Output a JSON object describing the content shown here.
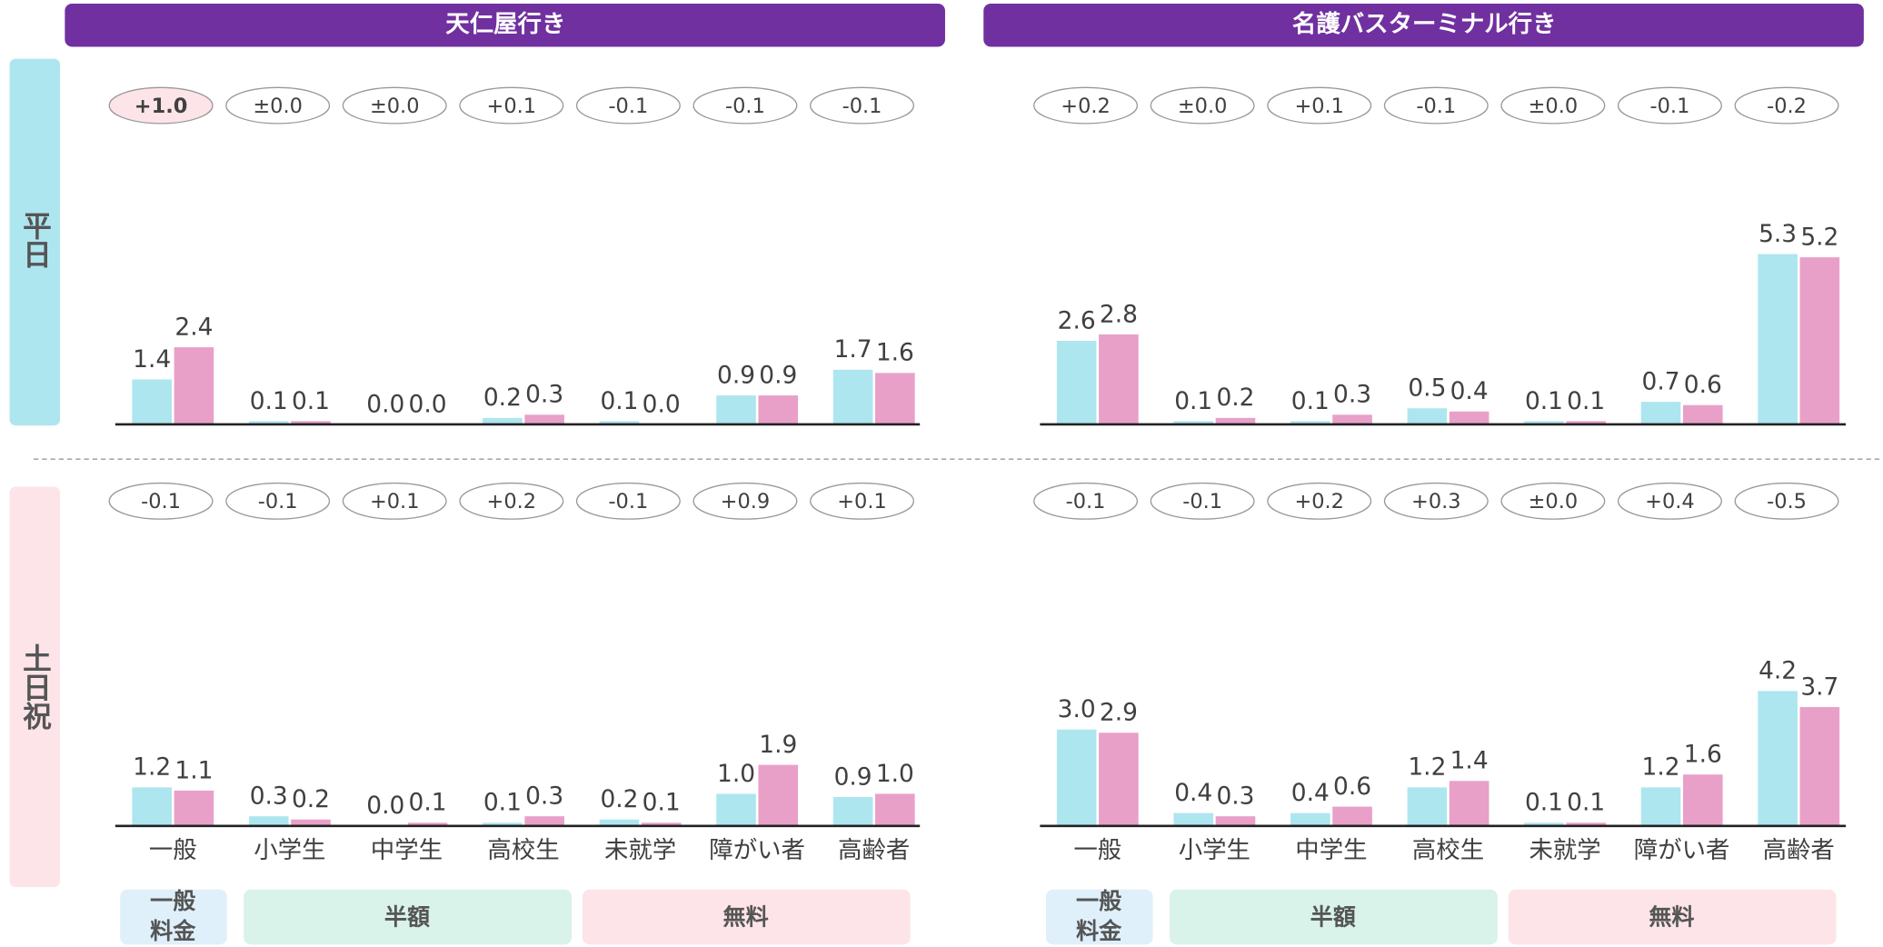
{
  "columns": [
    "天仁屋行き",
    "名護バスターミナル行き"
  ],
  "rows": [
    "平日",
    "土日祝"
  ],
  "fare_groups": [
    [
      "一般",
      "料金"
    ],
    [
      "半額"
    ],
    [
      "無料"
    ]
  ],
  "chart_data": [
    {
      "type": "bar",
      "highlighted_change": 0,
      "changes": [
        "+1.0",
        "±0.0",
        "±0.0",
        "+0.1",
        "-0.1",
        "-0.1",
        "-0.1"
      ],
      "series": [
        {
          "color": "#aee6f0",
          "values": [
            1.4,
            0.1,
            0,
            0.2,
            0.1,
            0.9,
            1.7
          ],
          "value_labels": [
            "1.4",
            "0.1",
            "0.0",
            "0.2",
            "0.1",
            "0.9",
            "1.7"
          ]
        },
        {
          "color": "#e8a0c8",
          "values": [
            2.4,
            0.1,
            0,
            0.3,
            0,
            0.9,
            1.6
          ],
          "value_labels": [
            "2.4",
            "0.1",
            "0.0",
            "0.3",
            "0.0",
            "0.9",
            "1.6"
          ]
        }
      ]
    },
    {
      "type": "bar",
      "changes": [
        "+0.2",
        "±0.0",
        "+0.1",
        "-0.1",
        "±0.0",
        "-0.1",
        "-0.2"
      ],
      "series": [
        {
          "color": "#aee6f0",
          "values": [
            2.6,
            0.1,
            0.1,
            0.5,
            0.1,
            0.7,
            5.3
          ],
          "value_labels": [
            "2.6",
            "0.1",
            "0.1",
            "0.5",
            "0.1",
            "0.7",
            "5.3"
          ]
        },
        {
          "color": "#e8a0c8",
          "values": [
            2.8,
            0.2,
            0.3,
            0.4,
            0.1,
            0.6,
            5.2
          ],
          "value_labels": [
            "2.8",
            "0.2",
            "0.3",
            "0.4",
            "0.1",
            "0.6",
            "5.2"
          ]
        }
      ]
    },
    {
      "type": "bar",
      "categories": [
        "一般",
        "小学生",
        "中学生",
        "高校生",
        "未就学",
        "障がい者",
        "高齢者"
      ],
      "changes": [
        "-0.1",
        "-0.1",
        "+0.1",
        "+0.2",
        "-0.1",
        "+0.9",
        "+0.1"
      ],
      "series": [
        {
          "color": "#aee6f0",
          "values": [
            1.2,
            0.3,
            0,
            0.1,
            0.2,
            1,
            0.9
          ],
          "value_labels": [
            "1.2",
            "0.3",
            "0.0",
            "0.1",
            "0.2",
            "1.0",
            "0.9"
          ]
        },
        {
          "color": "#e8a0c8",
          "values": [
            1.1,
            0.2,
            0.1,
            0.3,
            0.1,
            1.9,
            1
          ],
          "value_labels": [
            "1.1",
            "0.2",
            "0.1",
            "0.3",
            "0.1",
            "1.9",
            "1.0"
          ]
        }
      ]
    },
    {
      "type": "bar",
      "categories": [
        "一般",
        "小学生",
        "中学生",
        "高校生",
        "未就学",
        "障がい者",
        "高齢者"
      ],
      "changes": [
        "-0.1",
        "-0.1",
        "+0.2",
        "+0.3",
        "±0.0",
        "+0.4",
        "-0.5"
      ],
      "series": [
        {
          "color": "#aee6f0",
          "values": [
            3,
            0.4,
            0.4,
            1.2,
            0.1,
            1.2,
            4.2
          ],
          "value_labels": [
            "3.0",
            "0.4",
            "0.4",
            "1.2",
            "0.1",
            "1.2",
            "4.2"
          ]
        },
        {
          "color": "#e8a0c8",
          "values": [
            2.9,
            0.3,
            0.6,
            1.4,
            0.1,
            1.6,
            3.7
          ],
          "value_labels": [
            "2.9",
            "0.3",
            "0.6",
            "1.4",
            "0.1",
            "1.6",
            "3.7"
          ]
        }
      ]
    }
  ]
}
